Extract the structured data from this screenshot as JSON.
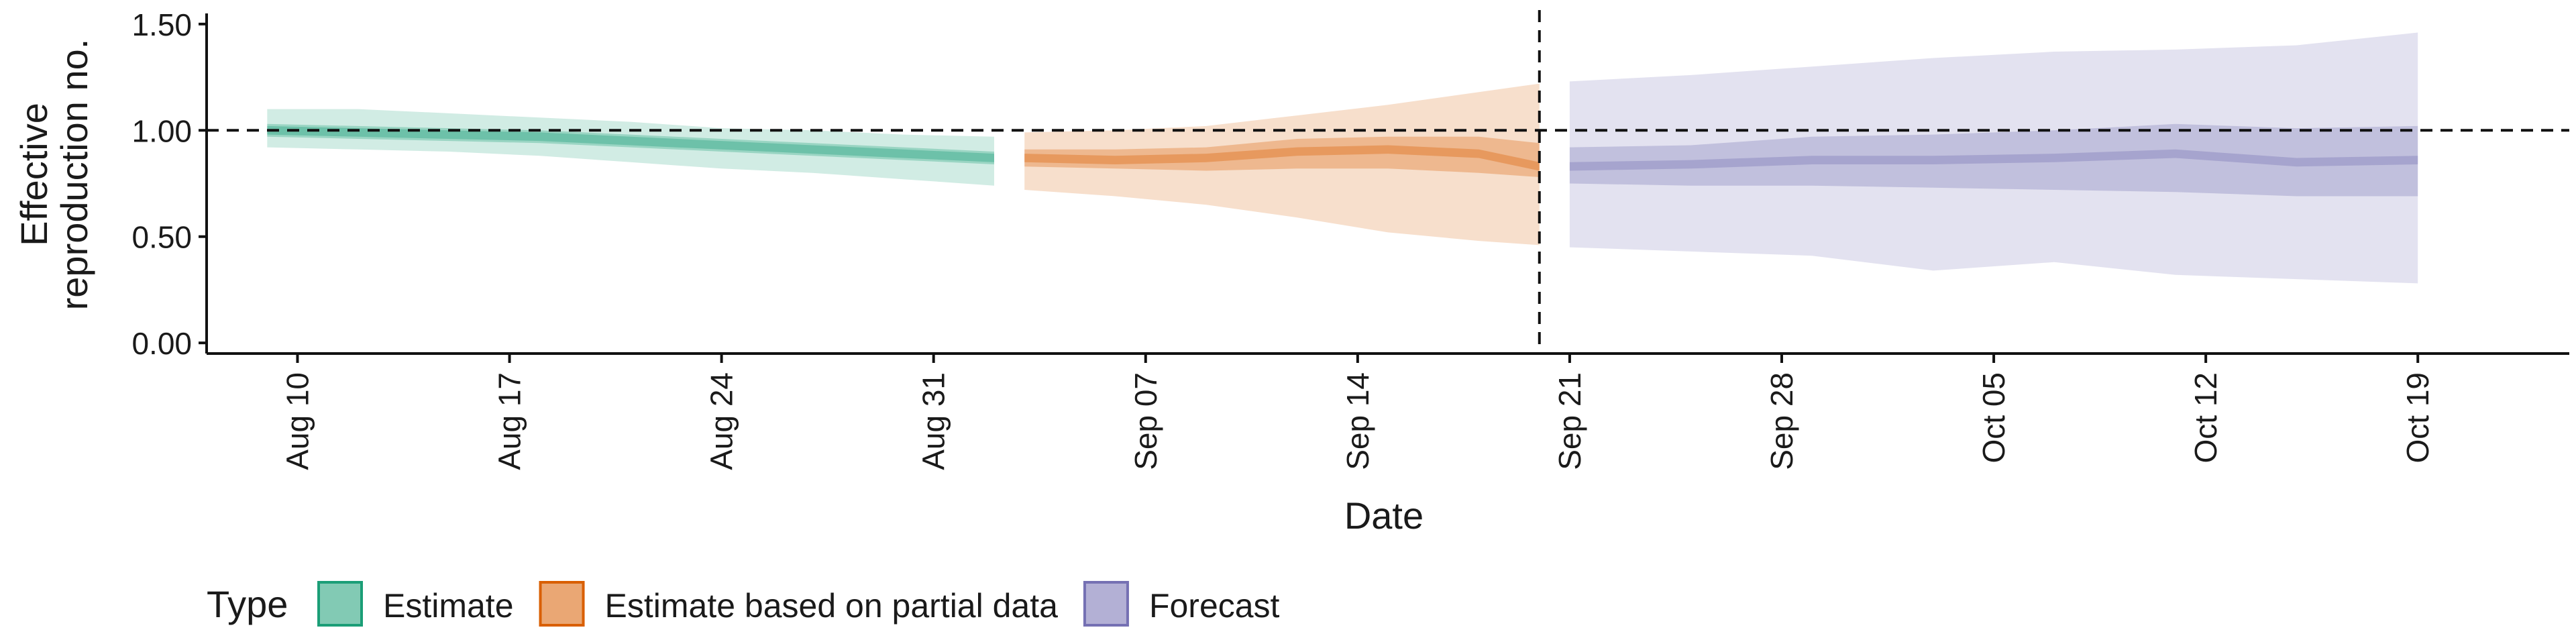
{
  "chart_data": {
    "type": "area",
    "title": "",
    "xlabel": "Date",
    "ylabel_lines": [
      "Effective",
      "reproduction no."
    ],
    "ylim": [
      -0.05,
      1.55
    ],
    "yticks": [
      0.0,
      0.5,
      1.0,
      1.5
    ],
    "ytick_labels": [
      "0.00",
      "0.50",
      "1.00",
      "1.50"
    ],
    "xlim": [
      "2021-08-07",
      "2021-10-24"
    ],
    "xticks": [
      "2021-08-10",
      "2021-08-17",
      "2021-08-24",
      "2021-08-31",
      "2021-09-07",
      "2021-09-14",
      "2021-09-21",
      "2021-09-28",
      "2021-10-05",
      "2021-10-12",
      "2021-10-19"
    ],
    "xtick_labels": [
      "Aug 10",
      "Aug 17",
      "Aug 24",
      "Aug 31",
      "Sep 07",
      "Sep 14",
      "Sep 21",
      "Sep 28",
      "Oct 05",
      "Oct 12",
      "Oct 19"
    ],
    "reference_hline": 1.0,
    "reference_vline": "2021-09-20",
    "legend_title": "Type",
    "legend_position": "bottom-left",
    "series": [
      {
        "name": "Estimate",
        "fill": "#1b9e77",
        "outline": "#1b9e77",
        "points": [
          {
            "date": "2021-08-09",
            "lo90": 0.92,
            "lo50": 0.97,
            "median": 1.0,
            "hi50": 1.03,
            "hi90": 1.1
          },
          {
            "date": "2021-08-12",
            "lo90": 0.91,
            "lo50": 0.96,
            "median": 0.99,
            "hi50": 1.02,
            "hi90": 1.1
          },
          {
            "date": "2021-08-15",
            "lo90": 0.9,
            "lo50": 0.95,
            "median": 0.98,
            "hi50": 1.01,
            "hi90": 1.08
          },
          {
            "date": "2021-08-18",
            "lo90": 0.88,
            "lo50": 0.94,
            "median": 0.97,
            "hi50": 1.0,
            "hi90": 1.06
          },
          {
            "date": "2021-08-21",
            "lo90": 0.85,
            "lo50": 0.92,
            "median": 0.95,
            "hi50": 0.98,
            "hi90": 1.04
          },
          {
            "date": "2021-08-24",
            "lo90": 0.82,
            "lo50": 0.9,
            "median": 0.93,
            "hi50": 0.96,
            "hi90": 1.01
          },
          {
            "date": "2021-08-27",
            "lo90": 0.8,
            "lo50": 0.88,
            "median": 0.91,
            "hi50": 0.94,
            "hi90": 1.0
          },
          {
            "date": "2021-08-30",
            "lo90": 0.77,
            "lo50": 0.86,
            "median": 0.89,
            "hi50": 0.92,
            "hi90": 0.98
          },
          {
            "date": "2021-09-02",
            "lo90": 0.74,
            "lo50": 0.84,
            "median": 0.87,
            "hi50": 0.9,
            "hi90": 0.97
          }
        ]
      },
      {
        "name": "Estimate based on partial data",
        "fill": "#d95f02",
        "outline": "#d95f02",
        "points": [
          {
            "date": "2021-09-03",
            "lo90": 0.72,
            "lo50": 0.83,
            "median": 0.87,
            "hi50": 0.91,
            "hi90": 0.99
          },
          {
            "date": "2021-09-06",
            "lo90": 0.69,
            "lo50": 0.82,
            "median": 0.86,
            "hi50": 0.91,
            "hi90": 1.0
          },
          {
            "date": "2021-09-09",
            "lo90": 0.65,
            "lo50": 0.81,
            "median": 0.87,
            "hi50": 0.92,
            "hi90": 1.02
          },
          {
            "date": "2021-09-12",
            "lo90": 0.59,
            "lo50": 0.82,
            "median": 0.9,
            "hi50": 0.96,
            "hi90": 1.07
          },
          {
            "date": "2021-09-15",
            "lo90": 0.52,
            "lo50": 0.82,
            "median": 0.91,
            "hi50": 0.97,
            "hi90": 1.12
          },
          {
            "date": "2021-09-18",
            "lo90": 0.48,
            "lo50": 0.8,
            "median": 0.89,
            "hi50": 0.97,
            "hi90": 1.18
          },
          {
            "date": "2021-09-20",
            "lo90": 0.46,
            "lo50": 0.78,
            "median": 0.83,
            "hi50": 0.94,
            "hi90": 1.22
          }
        ]
      },
      {
        "name": "Forecast",
        "fill": "#7570b3",
        "outline": "#7570b3",
        "points": [
          {
            "date": "2021-09-21",
            "lo90": 0.45,
            "lo50": 0.75,
            "median": 0.83,
            "hi50": 0.92,
            "hi90": 1.23
          },
          {
            "date": "2021-09-25",
            "lo90": 0.43,
            "lo50": 0.74,
            "median": 0.84,
            "hi50": 0.93,
            "hi90": 1.26
          },
          {
            "date": "2021-09-29",
            "lo90": 0.41,
            "lo50": 0.74,
            "median": 0.86,
            "hi50": 0.97,
            "hi90": 1.3
          },
          {
            "date": "2021-10-03",
            "lo90": 0.34,
            "lo50": 0.73,
            "median": 0.86,
            "hi50": 0.98,
            "hi90": 1.34
          },
          {
            "date": "2021-10-07",
            "lo90": 0.38,
            "lo50": 0.72,
            "median": 0.87,
            "hi50": 1.0,
            "hi90": 1.37
          },
          {
            "date": "2021-10-11",
            "lo90": 0.32,
            "lo50": 0.71,
            "median": 0.89,
            "hi50": 1.03,
            "hi90": 1.38
          },
          {
            "date": "2021-10-15",
            "lo90": 0.3,
            "lo50": 0.69,
            "median": 0.85,
            "hi50": 1.01,
            "hi90": 1.4
          },
          {
            "date": "2021-10-19",
            "lo90": 0.28,
            "lo50": 0.69,
            "median": 0.86,
            "hi50": 1.02,
            "hi90": 1.46
          }
        ]
      }
    ]
  }
}
